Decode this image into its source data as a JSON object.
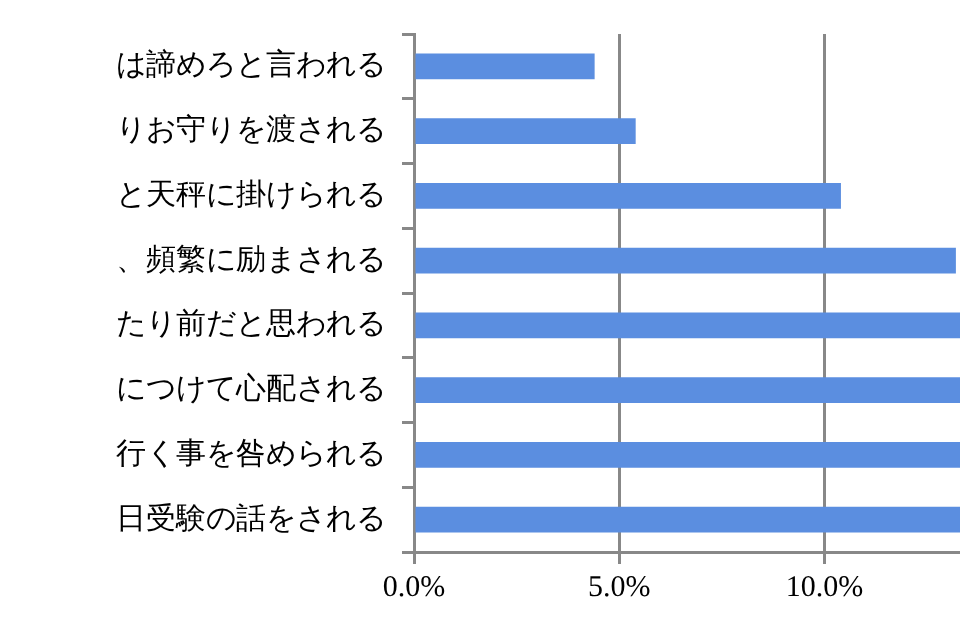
{
  "chart_data": {
    "type": "bar",
    "orientation": "horizontal",
    "categories": [
      "は諦めろと言われる",
      "りお守りを渡される",
      "と天秤に掛けられる",
      "、頻繁に励まされる",
      "たり前だと思われる",
      "につけて心配される",
      "行く事を咎められる",
      "日受験の話をされる"
    ],
    "values": [
      4.4,
      5.4,
      10.4,
      13.2,
      13.3,
      13.3,
      13.3,
      13.3
    ],
    "color": "#5b8ee0",
    "xlim": [
      0,
      13.3
    ],
    "xticks": [
      {
        "value": 0,
        "label": "0.0%"
      },
      {
        "value": 5,
        "label": "5.0%"
      },
      {
        "value": 10,
        "label": "10.0%"
      }
    ],
    "grid": "x",
    "legend": false
  }
}
